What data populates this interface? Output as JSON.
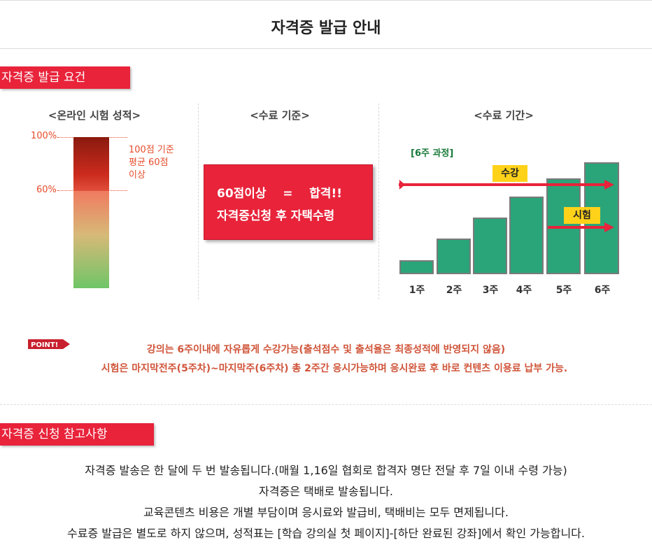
{
  "page_title": "자격증 발급 안내",
  "section1": {
    "title": "자격증 발급 요건",
    "col1_title": "<온라인 시험 성적>",
    "col2_title": "<수료 기준>",
    "col3_title": "<수료 기간>"
  },
  "gauge": {
    "tick_top": "100%",
    "tick_mid": "60%",
    "note_line1": "100점 기준",
    "note_line2": "평균 60점",
    "note_line3": "이상",
    "pass_threshold_percent": 60
  },
  "pass_box": {
    "line1": "60점이상    =    합격!!",
    "line2": "자격증신청 후 자택수령"
  },
  "period": {
    "course_label": "[6주 과정]",
    "lecture_label": "수강",
    "exam_label": "시험",
    "weeks": [
      "1주",
      "2주",
      "3주",
      "4주",
      "5주",
      "6주"
    ],
    "bar_color": "#2aa57a",
    "arrow_color": "#e8233a"
  },
  "point": {
    "badge": "POINT!",
    "line1": "강의는 6주이내에 자유롭게 수강가능(출석점수 및 출석율은 최종성적에 반영되지 않음)",
    "line2": "시험은 마지막전주(5주차)~마지막주(6주차) 총 2주간 응시가능하며 응시완료 후 바로 컨텐츠 이용료 납부 가능."
  },
  "section2": {
    "title": "자격증 신청 참고사항",
    "notes": [
      "자격증 발송은 한 달에 두 번 발송됩니다.(매월 1,16일 협회로 합격자 명단 전달 후 7일 이내 수령 가능)",
      "자격증은 택배로 발송됩니다.",
      "교육콘텐츠 비용은 개별 부담이며 응시료와 발급비, 택배비는 모두 면제됩니다.",
      "수료증 발급은 별도로 하지 않으며, 성적표는 [학습 강의실 첫 페이지]-[하단 완료된 강좌]에서 확인 가능합니다."
    ]
  },
  "accent_color": "#e8233a"
}
